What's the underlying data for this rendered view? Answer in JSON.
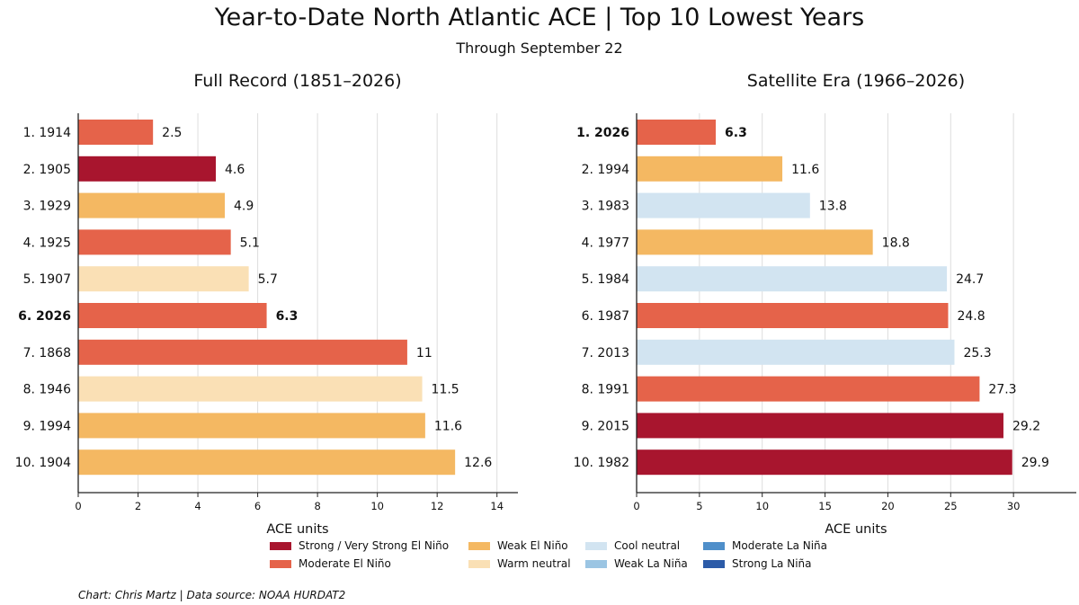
{
  "title": "Year-to-Date North Atlantic ACE | Top 10 Lowest Years",
  "subtitle": "Through September 22",
  "credit": "Chart: Chris Martz  |  Data source: NOAA HURDAT2",
  "colors": {
    "strong_el_nino": "#a8152e",
    "moderate_el_nino": "#e5634a",
    "weak_el_nino": "#f4b862",
    "warm_neutral": "#fae0b5",
    "cool_neutral": "#d2e4f1",
    "weak_la_nina": "#9bc5e3",
    "moderate_la_nina": "#4f8fca",
    "strong_la_nina": "#2c5ba8",
    "axis": "#222222",
    "grid": "#dddddd"
  },
  "legend": [
    {
      "label": "Strong / Very Strong El Niño",
      "color_key": "strong_el_nino"
    },
    {
      "label": "Moderate El Niño",
      "color_key": "moderate_el_nino"
    },
    {
      "label": "Weak El Niño",
      "color_key": "weak_el_nino"
    },
    {
      "label": "Warm neutral",
      "color_key": "warm_neutral"
    },
    {
      "label": "Cool neutral",
      "color_key": "cool_neutral"
    },
    {
      "label": "Weak La Niña",
      "color_key": "weak_la_nina"
    },
    {
      "label": "Moderate La Niña",
      "color_key": "moderate_la_nina"
    },
    {
      "label": "Strong La Niña",
      "color_key": "strong_la_nina"
    }
  ],
  "chart_data": [
    {
      "type": "bar",
      "orientation": "horizontal",
      "title": "Full Record (1851–2026)",
      "xlabel": "ACE units",
      "xlim": [
        0,
        14.7
      ],
      "xticks": [
        0,
        2,
        4,
        6,
        8,
        10,
        12,
        14
      ],
      "grid": "vertical",
      "bars": [
        {
          "label": "1.  1914",
          "value": 2.5,
          "value_label": "2.5",
          "category": "moderate_el_nino",
          "bold": false
        },
        {
          "label": "2.  1905",
          "value": 4.6,
          "value_label": "4.6",
          "category": "strong_el_nino",
          "bold": false
        },
        {
          "label": "3.  1929",
          "value": 4.9,
          "value_label": "4.9",
          "category": "weak_el_nino",
          "bold": false
        },
        {
          "label": "4.  1925",
          "value": 5.1,
          "value_label": "5.1",
          "category": "moderate_el_nino",
          "bold": false
        },
        {
          "label": "5.  1907",
          "value": 5.7,
          "value_label": "5.7",
          "category": "warm_neutral",
          "bold": false
        },
        {
          "label": "6.  2026",
          "value": 6.3,
          "value_label": "6.3",
          "category": "moderate_el_nino",
          "bold": true
        },
        {
          "label": "7.  1868",
          "value": 11,
          "value_label": "11",
          "category": "moderate_el_nino",
          "bold": false
        },
        {
          "label": "8.  1946",
          "value": 11.5,
          "value_label": "11.5",
          "category": "warm_neutral",
          "bold": false
        },
        {
          "label": "9.  1994",
          "value": 11.6,
          "value_label": "11.6",
          "category": "weak_el_nino",
          "bold": false
        },
        {
          "label": "10.  1904",
          "value": 12.6,
          "value_label": "12.6",
          "category": "weak_el_nino",
          "bold": false
        }
      ]
    },
    {
      "type": "bar",
      "orientation": "horizontal",
      "title": "Satellite Era (1966–2026)",
      "xlabel": "ACE units",
      "xlim": [
        0,
        35
      ],
      "xticks": [
        0,
        5,
        10,
        15,
        20,
        25,
        30
      ],
      "grid": "vertical",
      "bars": [
        {
          "label": "1.  2026",
          "value": 6.3,
          "value_label": "6.3",
          "category": "moderate_el_nino",
          "bold": true
        },
        {
          "label": "2.  1994",
          "value": 11.6,
          "value_label": "11.6",
          "category": "weak_el_nino",
          "bold": false
        },
        {
          "label": "3.  1983",
          "value": 13.8,
          "value_label": "13.8",
          "category": "cool_neutral",
          "bold": false
        },
        {
          "label": "4.  1977",
          "value": 18.8,
          "value_label": "18.8",
          "category": "weak_el_nino",
          "bold": false
        },
        {
          "label": "5.  1984",
          "value": 24.7,
          "value_label": "24.7",
          "category": "cool_neutral",
          "bold": false
        },
        {
          "label": "6.  1987",
          "value": 24.8,
          "value_label": "24.8",
          "category": "moderate_el_nino",
          "bold": false
        },
        {
          "label": "7.  2013",
          "value": 25.3,
          "value_label": "25.3",
          "category": "cool_neutral",
          "bold": false
        },
        {
          "label": "8.  1991",
          "value": 27.3,
          "value_label": "27.3",
          "category": "moderate_el_nino",
          "bold": false
        },
        {
          "label": "9.  2015",
          "value": 29.2,
          "value_label": "29.2",
          "category": "strong_el_nino",
          "bold": false
        },
        {
          "label": "10.  1982",
          "value": 29.9,
          "value_label": "29.9",
          "category": "strong_el_nino",
          "bold": false
        }
      ]
    }
  ]
}
